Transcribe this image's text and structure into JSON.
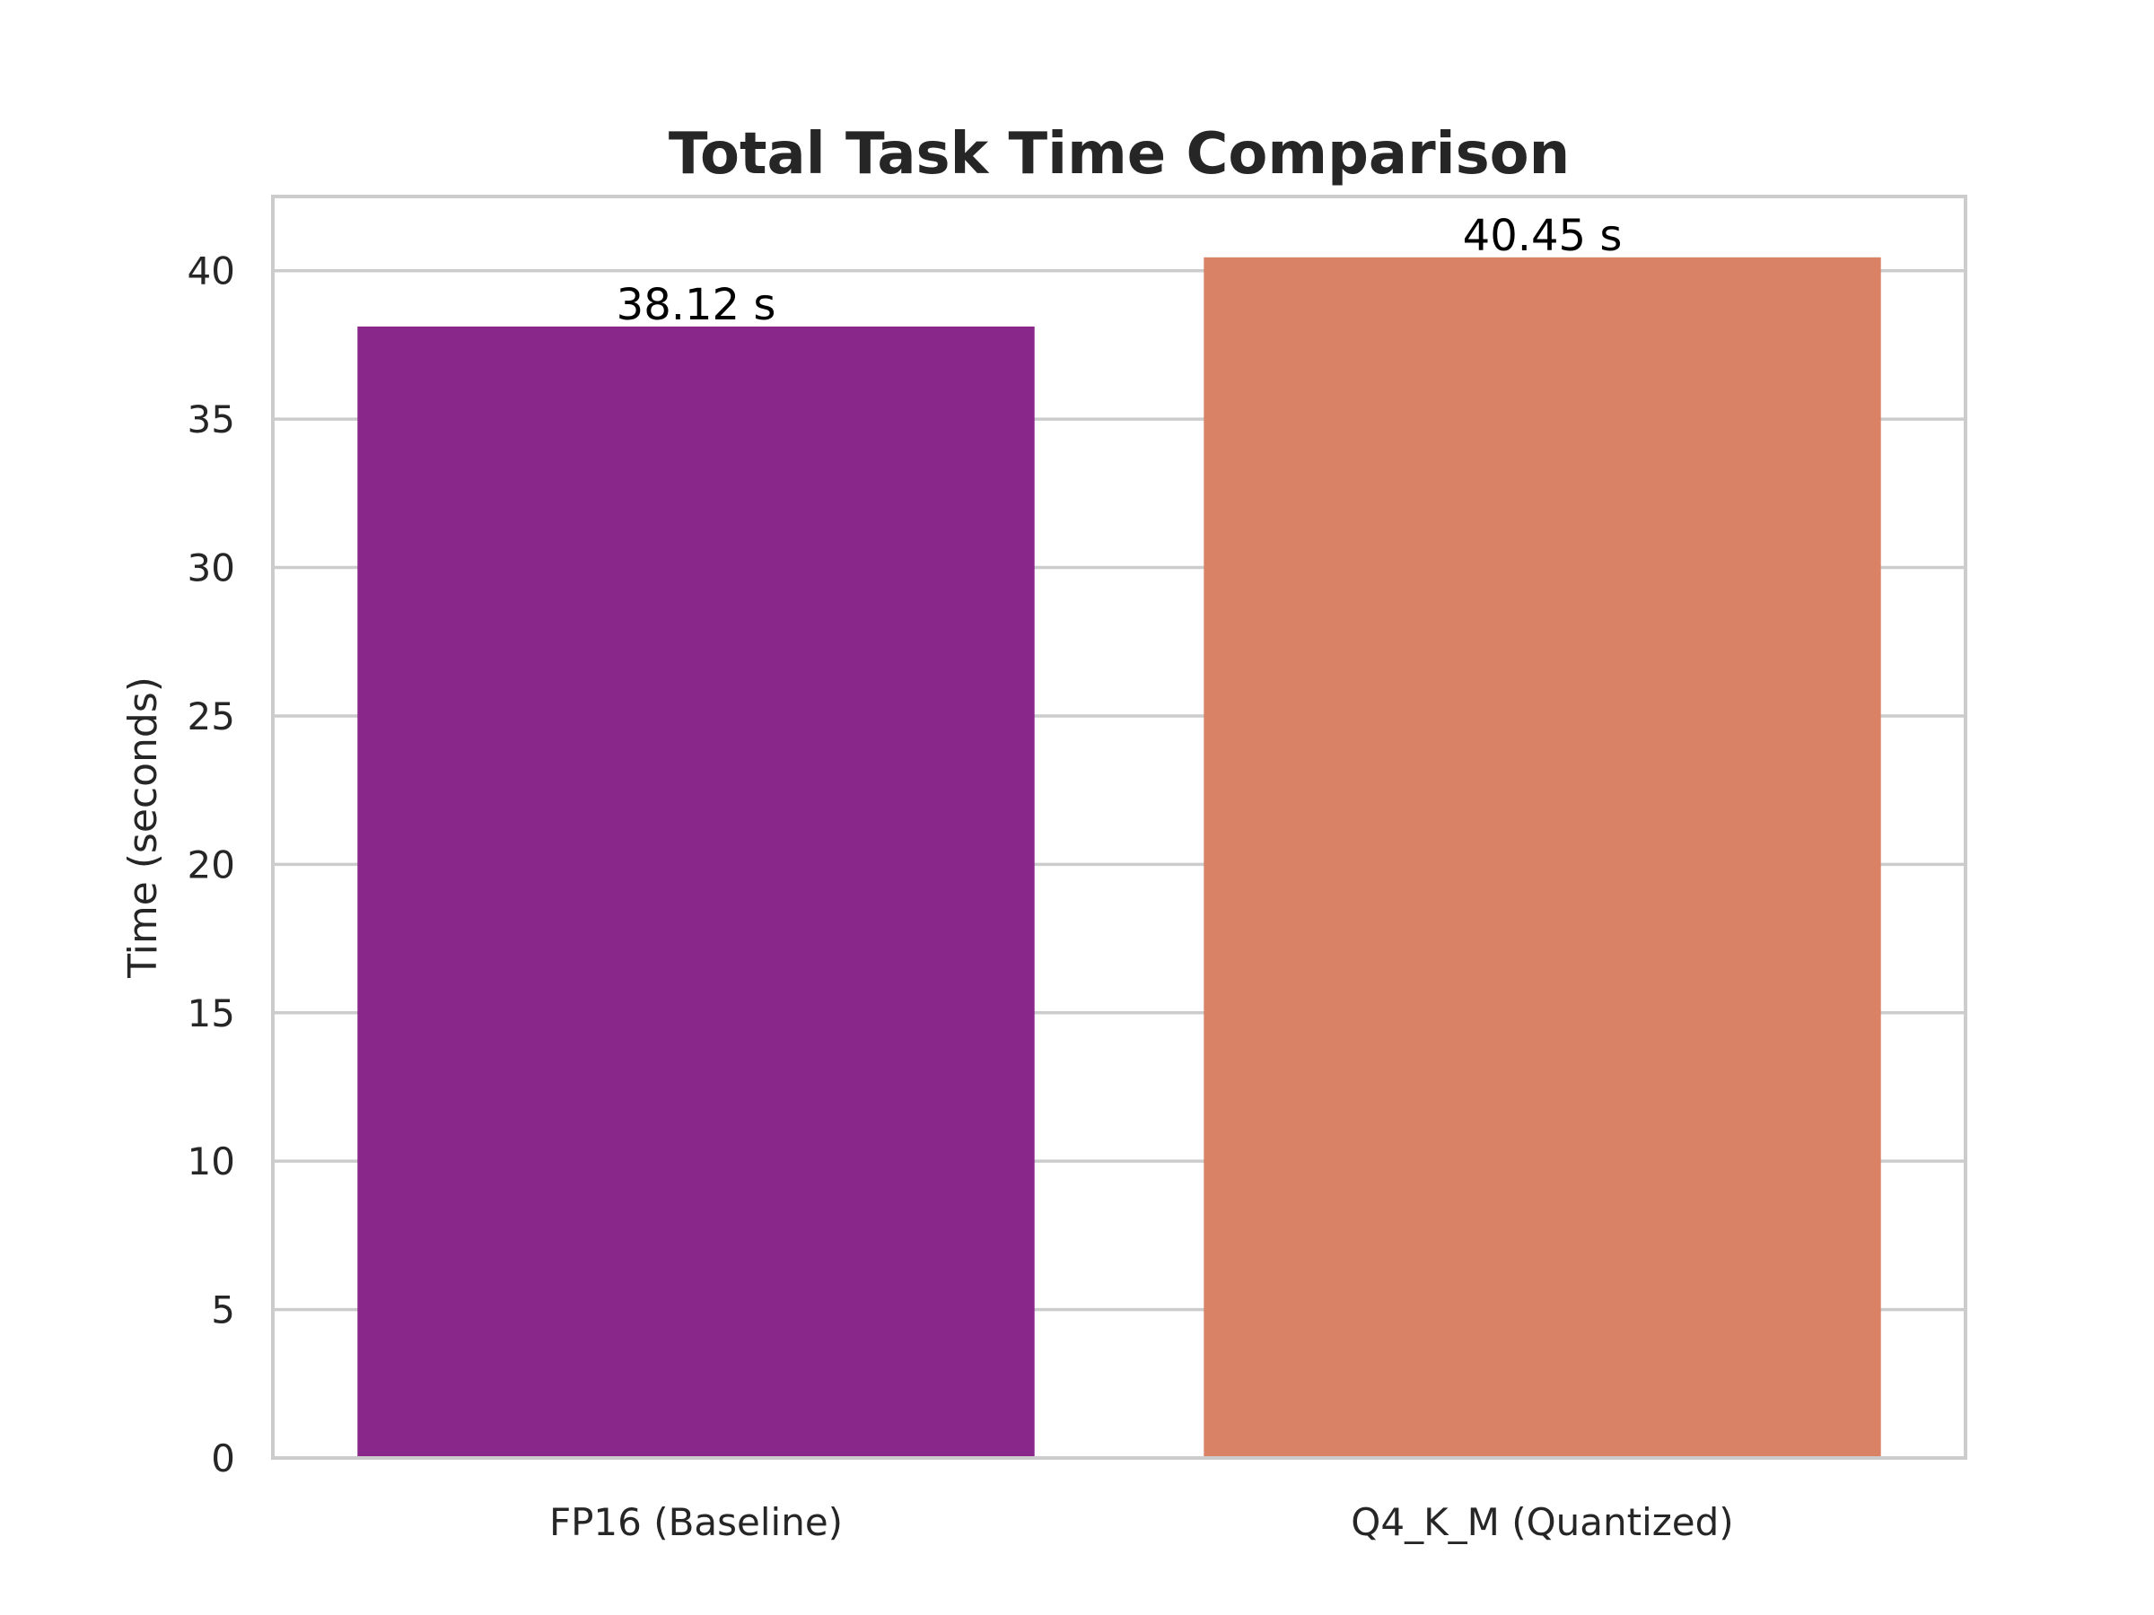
{
  "chart_data": {
    "type": "bar",
    "title": "Total Task Time Comparison",
    "xlabel": "",
    "ylabel": "Time (seconds)",
    "categories": [
      "FP16 (Baseline)",
      "Q4_K_M (Quantized)"
    ],
    "values": [
      38.12,
      40.45
    ],
    "value_labels": [
      "38.12 s",
      "40.45 s"
    ],
    "colors": [
      "#89288a",
      "#d98266"
    ],
    "ylim": [
      0,
      42.5
    ],
    "yticks": [
      0,
      5,
      10,
      15,
      20,
      25,
      30,
      35,
      40
    ],
    "grid": true,
    "legend": false
  }
}
